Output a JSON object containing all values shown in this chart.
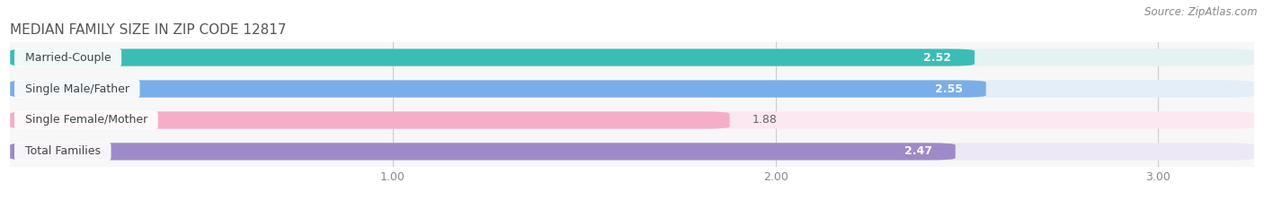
{
  "title": "MEDIAN FAMILY SIZE IN ZIP CODE 12817",
  "source": "Source: ZipAtlas.com",
  "categories": [
    "Married-Couple",
    "Single Male/Father",
    "Single Female/Mother",
    "Total Families"
  ],
  "values": [
    2.52,
    2.55,
    1.88,
    2.47
  ],
  "bar_colors": [
    "#3abdb5",
    "#7aaee8",
    "#f4aec8",
    "#9e8ac8"
  ],
  "bar_bg_colors": [
    "#e4f2f2",
    "#e4eef8",
    "#fce8f0",
    "#ece8f5"
  ],
  "value_label_colors": [
    "#ffffff",
    "#ffffff",
    "#888888",
    "#ffffff"
  ],
  "xlim_left": 0.0,
  "xlim_right": 3.25,
  "xticks": [
    1.0,
    2.0,
    3.0
  ],
  "xtick_labels": [
    "1.00",
    "2.00",
    "3.00"
  ],
  "background_color": "#ffffff",
  "plot_bg_color": "#f7f7f7",
  "bar_height": 0.55,
  "bar_gap": 0.95,
  "title_fontsize": 11,
  "cat_fontsize": 9,
  "value_fontsize": 9,
  "tick_fontsize": 9,
  "source_fontsize": 8.5
}
